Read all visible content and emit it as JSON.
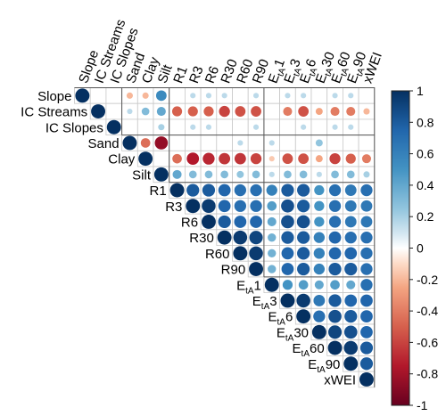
{
  "chart_data": {
    "type": "heatmap",
    "variant": "correlation-matrix-upper-triangle-circles",
    "variables": [
      {
        "id": "Slope",
        "base": "Slope",
        "sub": ""
      },
      {
        "id": "IC Streams",
        "base": "IC Streams",
        "sub": ""
      },
      {
        "id": "IC Slopes",
        "base": "IC Slopes",
        "sub": ""
      },
      {
        "id": "Sand",
        "base": "Sand",
        "sub": ""
      },
      {
        "id": "Clay",
        "base": "Clay",
        "sub": ""
      },
      {
        "id": "Silt",
        "base": "Silt",
        "sub": ""
      },
      {
        "id": "R1",
        "base": "R1",
        "sub": ""
      },
      {
        "id": "R3",
        "base": "R3",
        "sub": ""
      },
      {
        "id": "R6",
        "base": "R6",
        "sub": ""
      },
      {
        "id": "R30",
        "base": "R30",
        "sub": ""
      },
      {
        "id": "R60",
        "base": "R60",
        "sub": ""
      },
      {
        "id": "R90",
        "base": "R90",
        "sub": ""
      },
      {
        "id": "EtA1",
        "base": "E",
        "sub": "tA",
        "suffix": "1"
      },
      {
        "id": "EtA3",
        "base": "E",
        "sub": "tA",
        "suffix": "3"
      },
      {
        "id": "EtA6",
        "base": "E",
        "sub": "tA",
        "suffix": "6"
      },
      {
        "id": "EtA30",
        "base": "E",
        "sub": "tA",
        "suffix": "30"
      },
      {
        "id": "EtA60",
        "base": "E",
        "sub": "tA",
        "suffix": "60"
      },
      {
        "id": "EtA90",
        "base": "E",
        "sub": "tA",
        "suffix": "90"
      },
      {
        "id": "xWEI",
        "base": "xWEI",
        "sub": ""
      }
    ],
    "matrix": [
      [
        1.0,
        0.0,
        0.0,
        -0.2,
        -0.2,
        0.55,
        0.0,
        0.15,
        0.15,
        0.15,
        0.0,
        0.15,
        0.0,
        0.15,
        0.15,
        0.0,
        0.15,
        0.15,
        0.0
      ],
      [
        0.0,
        1.0,
        0.0,
        0.15,
        0.3,
        0.4,
        -0.5,
        -0.5,
        -0.5,
        -0.6,
        -0.55,
        -0.55,
        0.0,
        -0.4,
        -0.55,
        -0.25,
        -0.4,
        -0.4,
        -0.2
      ],
      [
        0.0,
        0.0,
        1.0,
        0.0,
        0.0,
        0.2,
        0.0,
        0.15,
        0.15,
        0.0,
        0.0,
        0.15,
        0.0,
        0.0,
        0.15,
        0.0,
        0.15,
        0.15,
        0.0
      ],
      [
        -0.2,
        0.15,
        0.0,
        1.0,
        -0.45,
        -0.85,
        0.0,
        0.0,
        0.0,
        0.0,
        0.15,
        0.0,
        0.15,
        0.0,
        0.0,
        0.25,
        0.0,
        0.0,
        0.0
      ],
      [
        -0.2,
        0.3,
        0.0,
        -0.45,
        1.0,
        0.0,
        -0.45,
        -0.75,
        -0.7,
        -0.65,
        -0.65,
        -0.6,
        -0.15,
        -0.55,
        -0.55,
        -0.25,
        -0.6,
        -0.5,
        -0.4
      ],
      [
        0.55,
        0.4,
        0.2,
        -0.85,
        0.0,
        1.0,
        0.4,
        0.3,
        0.3,
        0.3,
        0.25,
        0.3,
        0.15,
        0.3,
        0.3,
        0.15,
        0.3,
        0.3,
        0.2
      ],
      [
        0.0,
        -0.5,
        0.0,
        0.0,
        -0.45,
        0.4,
        1.0,
        0.8,
        0.8,
        0.75,
        0.7,
        0.7,
        0.6,
        0.8,
        0.8,
        0.5,
        0.7,
        0.65,
        0.7
      ],
      [
        0.15,
        -0.5,
        0.15,
        0.0,
        -0.75,
        0.3,
        0.8,
        1.0,
        0.95,
        0.75,
        0.7,
        0.7,
        0.45,
        0.85,
        0.8,
        0.5,
        0.7,
        0.65,
        0.65
      ],
      [
        0.15,
        -0.5,
        0.15,
        0.0,
        -0.7,
        0.3,
        0.8,
        0.95,
        1.0,
        0.8,
        0.75,
        0.75,
        0.4,
        0.85,
        0.85,
        0.5,
        0.7,
        0.65,
        0.65
      ],
      [
        0.15,
        -0.6,
        0.0,
        0.0,
        -0.65,
        0.3,
        0.75,
        0.75,
        0.8,
        1.0,
        0.95,
        0.9,
        0.35,
        0.8,
        0.8,
        0.6,
        0.75,
        0.7,
        0.7
      ],
      [
        0.0,
        -0.55,
        0.0,
        0.15,
        -0.65,
        0.25,
        0.7,
        0.7,
        0.75,
        0.95,
        1.0,
        0.95,
        0.35,
        0.75,
        0.8,
        0.6,
        0.75,
        0.75,
        0.7
      ],
      [
        0.15,
        -0.55,
        0.15,
        0.0,
        -0.6,
        0.3,
        0.7,
        0.7,
        0.75,
        0.9,
        0.95,
        1.0,
        0.35,
        0.75,
        0.8,
        0.6,
        0.8,
        0.8,
        0.7
      ],
      [
        0.0,
        0.0,
        0.0,
        0.15,
        -0.15,
        0.15,
        0.6,
        0.45,
        0.4,
        0.35,
        0.35,
        0.35,
        1.0,
        0.5,
        0.45,
        0.4,
        0.45,
        0.4,
        0.7
      ],
      [
        0.15,
        -0.4,
        0.0,
        0.0,
        -0.55,
        0.3,
        0.8,
        0.85,
        0.85,
        0.8,
        0.75,
        0.75,
        0.5,
        1.0,
        0.95,
        0.65,
        0.8,
        0.75,
        0.75
      ],
      [
        0.15,
        -0.55,
        0.15,
        0.0,
        -0.55,
        0.3,
        0.8,
        0.8,
        0.85,
        0.8,
        0.8,
        0.8,
        0.45,
        0.95,
        1.0,
        0.7,
        0.85,
        0.8,
        0.75
      ],
      [
        0.0,
        -0.25,
        0.0,
        0.25,
        -0.25,
        0.15,
        0.5,
        0.5,
        0.5,
        0.6,
        0.6,
        0.6,
        0.4,
        0.65,
        0.7,
        1.0,
        0.9,
        0.85,
        0.75
      ],
      [
        0.15,
        -0.4,
        0.15,
        0.0,
        -0.6,
        0.3,
        0.7,
        0.7,
        0.7,
        0.75,
        0.75,
        0.8,
        0.45,
        0.8,
        0.85,
        0.9,
        1.0,
        0.95,
        0.8
      ],
      [
        0.15,
        -0.4,
        0.15,
        0.0,
        -0.5,
        0.3,
        0.65,
        0.65,
        0.65,
        0.7,
        0.75,
        0.8,
        0.4,
        0.75,
        0.8,
        0.85,
        0.95,
        1.0,
        0.8
      ],
      [
        0.0,
        -0.2,
        0.0,
        0.0,
        -0.4,
        0.2,
        0.7,
        0.65,
        0.65,
        0.7,
        0.7,
        0.7,
        0.7,
        0.75,
        0.75,
        0.75,
        0.8,
        0.8,
        1.0
      ]
    ],
    "color_scale": {
      "range": [
        -1,
        1
      ],
      "ticks": [
        "1",
        "0.8",
        "0.6",
        "0.4",
        "0.2",
        "0",
        "-0.2",
        "-0.4",
        "-0.6",
        "-0.8",
        "-1"
      ],
      "tick_values": [
        1,
        0.8,
        0.6,
        0.4,
        0.2,
        0,
        -0.2,
        -0.4,
        -0.6,
        -0.8,
        -1
      ],
      "stops": [
        {
          "value": -1.0,
          "color": "#67001f"
        },
        {
          "value": -0.75,
          "color": "#b2182b"
        },
        {
          "value": -0.5,
          "color": "#d6604d"
        },
        {
          "value": -0.25,
          "color": "#f4a582"
        },
        {
          "value": -0.1,
          "color": "#fddbc7"
        },
        {
          "value": 0.0,
          "color": "#ffffff"
        },
        {
          "value": 0.1,
          "color": "#d1e5f0"
        },
        {
          "value": 0.25,
          "color": "#92c5de"
        },
        {
          "value": 0.5,
          "color": "#4393c3"
        },
        {
          "value": 0.75,
          "color": "#2166ac"
        },
        {
          "value": 1.0,
          "color": "#053061"
        }
      ]
    },
    "group_boundaries_after": [
      "IC Slopes",
      "Silt",
      "R90"
    ],
    "legend_placement": "right",
    "grid": true
  }
}
